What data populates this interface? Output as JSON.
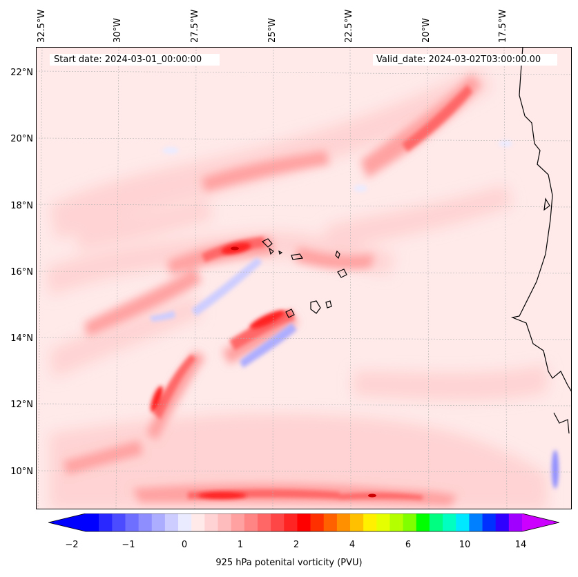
{
  "map": {
    "start_date": "Start date: 2024-03-01_00:00:00",
    "valid_date": "Valid_date: 2024-03-02T03:00:00.00",
    "lon_labels": [
      "32.5°W",
      "30°W",
      "27.5°W",
      "25°W",
      "22.5°W",
      "20°W",
      "17.5°W"
    ],
    "lat_labels": [
      "22°N",
      "20°N",
      "18°N",
      "16°N",
      "14°N",
      "12°N",
      "10°N"
    ]
  },
  "colorbar": {
    "label": "925 hPa potenital vorticity (PVU)",
    "ticks": [
      "−2",
      "−1",
      "0",
      "1",
      "2",
      "4",
      "6",
      "10",
      "14"
    ],
    "colors": [
      "#0000ff",
      "#2828ff",
      "#4b4bff",
      "#6e6eff",
      "#8e8eff",
      "#adadff",
      "#cdcdff",
      "#ebebff",
      "#ffe9e9",
      "#ffd3d3",
      "#ffbcbc",
      "#ffa1a1",
      "#ff8585",
      "#ff6767",
      "#ff4646",
      "#ff2424",
      "#ff0000",
      "#ff3000",
      "#ff6000",
      "#ff9000",
      "#ffc000",
      "#fff000",
      "#e6ff00",
      "#b4ff00",
      "#7fff00",
      "#00ff00",
      "#00ff80",
      "#00ffc0",
      "#00e8ff",
      "#0080ff",
      "#0030ff",
      "#3000ff",
      "#a000ff"
    ],
    "under_color": "#0000ff",
    "over_color": "#cc00ff"
  }
}
